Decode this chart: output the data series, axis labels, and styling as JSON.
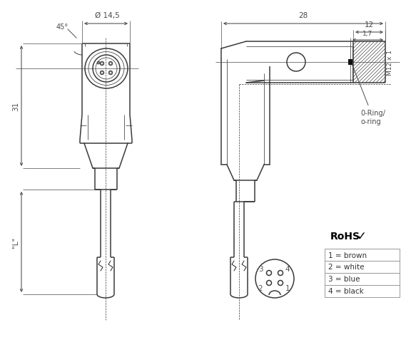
{
  "bg_color": "#ffffff",
  "line_color": "#3a3a3a",
  "dim_color": "#4a4a4a",
  "rohs_text": "RoHS",
  "pin_labels": [
    "1 = brown",
    "2 = white",
    "3 = blue",
    "4 = black"
  ],
  "dim_14_5": "Ø 14,5",
  "dim_28": "28",
  "dim_12": "12",
  "dim_17": "1,7",
  "dim_31": "31",
  "dim_L": "\"L\"",
  "dim_45": "45°",
  "dim_M12": "M12 x 1",
  "label_oring": "0-Ring/\no-ring"
}
